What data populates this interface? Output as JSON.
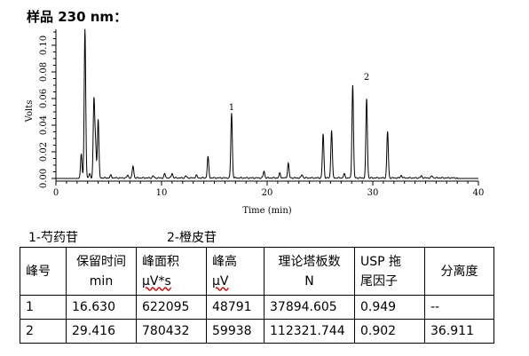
{
  "page_title": "样品 230 nm：",
  "chart_data": {
    "type": "line",
    "xlabel": "Time (min)",
    "ylabel": "Volts",
    "xlim": [
      0,
      40
    ],
    "ylim": [
      -0.002,
      0.112
    ],
    "x_ticks": [
      0,
      10,
      20,
      30,
      40
    ],
    "y_ticks": [
      0.0,
      0.02,
      0.04,
      0.06,
      0.08,
      0.1
    ],
    "y_tick_labels": [
      "0.00",
      "0.02",
      "0.04",
      "0.06",
      "0.08",
      "0.10"
    ],
    "baseline": 0.0004,
    "peaks": [
      {
        "t": 2.4,
        "h": 0.018
      },
      {
        "t": 2.75,
        "h": 0.112
      },
      {
        "t": 3.2,
        "h": 0.003
      },
      {
        "t": 3.6,
        "h": 0.058
      },
      {
        "t": 3.75,
        "h": 0.025
      },
      {
        "t": 4.0,
        "h": 0.044
      },
      {
        "t": 5.2,
        "h": 0.002
      },
      {
        "t": 6.8,
        "h": 0.002
      },
      {
        "t": 7.3,
        "h": 0.009
      },
      {
        "t": 9.2,
        "h": 0.0015
      },
      {
        "t": 10.3,
        "h": 0.003
      },
      {
        "t": 11.0,
        "h": 0.0035
      },
      {
        "t": 12.3,
        "h": 0.0015
      },
      {
        "t": 13.3,
        "h": 0.002
      },
      {
        "t": 14.4,
        "h": 0.016
      },
      {
        "t": 16.63,
        "h": 0.0488
      },
      {
        "t": 19.7,
        "h": 0.005
      },
      {
        "t": 21.2,
        "h": 0.0035
      },
      {
        "t": 22.0,
        "h": 0.011
      },
      {
        "t": 23.3,
        "h": 0.0025
      },
      {
        "t": 25.3,
        "h": 0.033
      },
      {
        "t": 26.1,
        "h": 0.036
      },
      {
        "t": 27.3,
        "h": 0.003
      },
      {
        "t": 28.1,
        "h": 0.07
      },
      {
        "t": 29.416,
        "h": 0.0599
      },
      {
        "t": 31.4,
        "h": 0.035
      },
      {
        "t": 32.7,
        "h": 0.002
      },
      {
        "t": 34.6,
        "h": 0.0015
      },
      {
        "t": 35.6,
        "h": 0.0015
      }
    ],
    "annotations": [
      {
        "text": "1",
        "x": 16.63,
        "y": 0.0488
      },
      {
        "text": "2",
        "x": 29.416,
        "y": 0.0715
      }
    ]
  },
  "peak_legend": [
    "1-芍药苷",
    "2-橙皮苷"
  ],
  "table": {
    "header_lines": [
      [
        "峰号"
      ],
      [
        "保留时间",
        "min"
      ],
      [
        "峰面积",
        "μV*s"
      ],
      [
        "峰高",
        "μV"
      ],
      [
        "理论塔板数",
        "N"
      ],
      [
        "USP 拖",
        "尾因子"
      ],
      [
        "分离度"
      ]
    ],
    "rows": [
      [
        "1",
        "16.630",
        "622095",
        "48791",
        "37894.605",
        "0.949",
        "--"
      ],
      [
        "2",
        "29.416",
        "780432",
        "59938",
        "112321.744",
        "0.902",
        "36.911"
      ]
    ]
  }
}
